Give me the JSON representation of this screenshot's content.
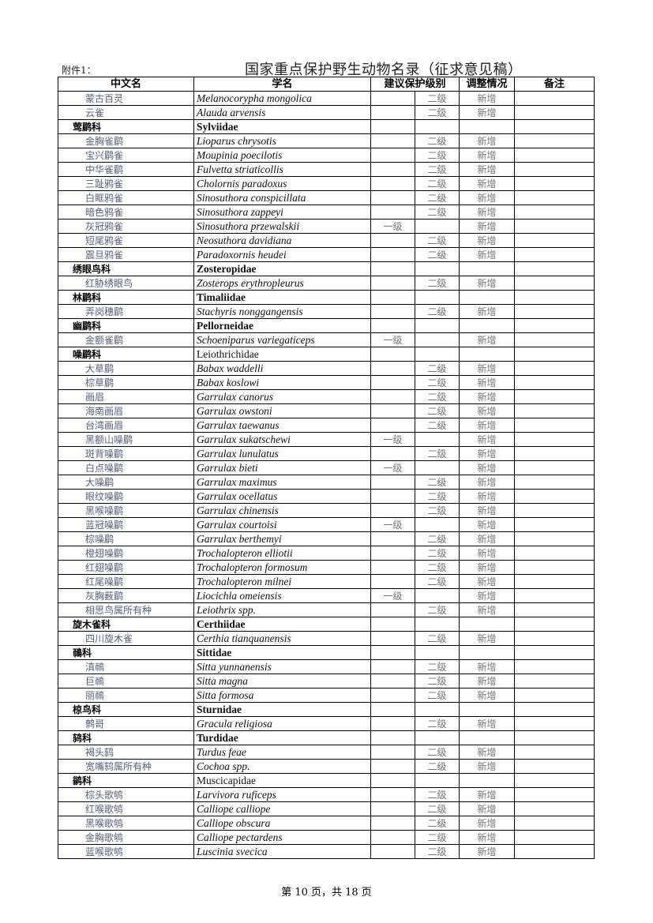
{
  "attachment_label": "附件1：",
  "title": "国家重点保护野生动物名录（征求意见稿）",
  "columns": {
    "chinese_name": "中文名",
    "scientific_name": "学名",
    "level": "建议保护级别",
    "adjustment": "调整情况",
    "remarks": "备注"
  },
  "rows": [
    {
      "cn": "蒙古百灵",
      "sci": "Melanocorypha mongolica",
      "l1": "",
      "l2": "二级",
      "adj": "新增"
    },
    {
      "cn": "云雀",
      "sci": "Alauda arvensis",
      "l1": "",
      "l2": "二级",
      "adj": "新增"
    },
    {
      "family": true,
      "cn": "莺鹛科",
      "sci": "Sylviidae"
    },
    {
      "cn": "金胸雀鹛",
      "sci": "Lioparus chrysotis",
      "l1": "",
      "l2": "二级",
      "adj": "新增"
    },
    {
      "cn": "宝兴鹛雀",
      "sci": "Moupinia poecilotis",
      "l1": "",
      "l2": "二级",
      "adj": "新增"
    },
    {
      "cn": "中华雀鹛",
      "sci": "Fulvetta striaticollis",
      "l1": "",
      "l2": "二级",
      "adj": "新增"
    },
    {
      "cn": "三趾鸦雀",
      "sci": "Cholornis paradoxus",
      "l1": "",
      "l2": "二级",
      "adj": "新增"
    },
    {
      "cn": "白眶鸦雀",
      "sci": "Sinosuthora conspicillata",
      "l1": "",
      "l2": "二级",
      "adj": "新增"
    },
    {
      "cn": "暗色鸦雀",
      "sci": "Sinosuthora zappeyi",
      "l1": "",
      "l2": "二级",
      "adj": "新增"
    },
    {
      "cn": "灰冠鸦雀",
      "sci": "Sinosuthora przewalskii",
      "l1": "一级",
      "l2": "",
      "adj": "新增"
    },
    {
      "cn": "短尾鸦雀",
      "sci": "Neosuthora davidiana",
      "l1": "",
      "l2": "二级",
      "adj": "新增"
    },
    {
      "cn": "震旦鸦雀",
      "sci": "Paradoxornis heudei",
      "l1": "",
      "l2": "二级",
      "adj": "新增"
    },
    {
      "family": true,
      "cn": "绣眼鸟科",
      "sci": "Zosteropidae"
    },
    {
      "cn": "红胁绣眼鸟",
      "sci": "Zosterops erythropleurus",
      "l1": "",
      "l2": "二级",
      "adj": "新增"
    },
    {
      "family": true,
      "cn": "林鹛科",
      "sci": "Timaliidae"
    },
    {
      "cn": "弄岗穗鹛",
      "sci": "Stachyris nonggangensis",
      "l1": "",
      "l2": "二级",
      "adj": "新增"
    },
    {
      "family": true,
      "cn": "幽鹛科",
      "sci": "Pellorneidae"
    },
    {
      "cn": "金额雀鹛",
      "sci": "Schoeniparus variegaticeps",
      "l1": "一级",
      "l2": "",
      "adj": "新增"
    },
    {
      "family": true,
      "plain": true,
      "cn": "噪鹛科",
      "sci": "Leiothrichidae"
    },
    {
      "cn": "大草鹛",
      "sci": "Babax waddelli",
      "l1": "",
      "l2": "二级",
      "adj": "新增"
    },
    {
      "cn": "棕草鹛",
      "sci": "Babax koslowi",
      "l1": "",
      "l2": "二级",
      "adj": "新增"
    },
    {
      "cn": "画眉",
      "sci": "Garrulax canorus",
      "l1": "",
      "l2": "二级",
      "adj": "新增"
    },
    {
      "cn": "海南画眉",
      "sci": "Garrulax owstoni",
      "l1": "",
      "l2": "二级",
      "adj": "新增"
    },
    {
      "cn": "台湾画眉",
      "sci": "Garrulax taewanus",
      "l1": "",
      "l2": "二级",
      "adj": "新增"
    },
    {
      "cn": "黑额山噪鹛",
      "sci": "Garrulax sukatschewi",
      "l1": "一级",
      "l2": "",
      "adj": "新增"
    },
    {
      "cn": "斑背噪鹛",
      "sci": "Garrulax lunulatus",
      "l1": "",
      "l2": "二级",
      "adj": "新增"
    },
    {
      "cn": "白点噪鹛",
      "sci": "Garrulax bieti",
      "l1": "一级",
      "l2": "",
      "adj": "新增"
    },
    {
      "cn": "大噪鹛",
      "sci": "Garrulax maximus",
      "l1": "",
      "l2": "二级",
      "adj": "新增"
    },
    {
      "cn": "眼纹噪鹛",
      "sci": "Garrulax ocellatus",
      "l1": "",
      "l2": "二级",
      "adj": "新增"
    },
    {
      "cn": "黑喉噪鹛",
      "sci": "Garrulax chinensis",
      "l1": "",
      "l2": "二级",
      "adj": "新增"
    },
    {
      "cn": "蓝冠噪鹛",
      "sci": "Garrulax courtoisi",
      "l1": "一级",
      "l2": "",
      "adj": "新增"
    },
    {
      "cn": "棕噪鹛",
      "sci": "Garrulax berthemyi",
      "l1": "",
      "l2": "二级",
      "adj": "新增"
    },
    {
      "cn": "橙翅噪鹛",
      "sci": "Trochalopteron elliotii",
      "l1": "",
      "l2": "二级",
      "adj": "新增"
    },
    {
      "cn": "红翅噪鹛",
      "sci": "Trochalopteron formosum",
      "l1": "",
      "l2": "二级",
      "adj": "新增"
    },
    {
      "cn": "红尾噪鹛",
      "sci": "Trochalopteron milnei",
      "l1": "",
      "l2": "二级",
      "adj": "新增"
    },
    {
      "cn": "灰胸薮鹛",
      "sci": "Liocichla omeiensis",
      "l1": "一级",
      "l2": "",
      "adj": "新增"
    },
    {
      "cn": "相思鸟属所有种",
      "sci": "Leiothrix spp.",
      "l1": "",
      "l2": "二级",
      "adj": "新增"
    },
    {
      "family": true,
      "cn": "旋木雀科",
      "sci": "Certhiidae"
    },
    {
      "cn": "四川旋木雀",
      "sci": "Certhia tianquanensis",
      "l1": "",
      "l2": "二级",
      "adj": "新增"
    },
    {
      "family": true,
      "cn": "鳾科",
      "sci": "Sittidae"
    },
    {
      "cn": "滇鳾",
      "sci": " Sitta yunnanensis",
      "l1": "",
      "l2": "二级",
      "adj": "新增"
    },
    {
      "cn": "巨鳾",
      "sci": "Sitta magna",
      "l1": "",
      "l2": "二级",
      "adj": "新增"
    },
    {
      "cn": "丽鳾",
      "sci": "Sitta formosa",
      "l1": "",
      "l2": "二级",
      "adj": "新增"
    },
    {
      "family": true,
      "cn": "椋鸟科",
      "sci": "Sturnidae"
    },
    {
      "cn": "鹩哥",
      "sci": "Gracula religiosa",
      "l1": "",
      "l2": "二级",
      "adj": "新增"
    },
    {
      "family": true,
      "cn": "鸫科",
      "sci": "Turdidae"
    },
    {
      "cn": "褐头鸫",
      "sci": "Turdus feae",
      "l1": "",
      "l2": "二级",
      "adj": "新增"
    },
    {
      "cn": "宽嘴鸫属所有种",
      "sci": "Cochoa spp.",
      "l1": "",
      "l2": "二级",
      "adj": "新增"
    },
    {
      "family": true,
      "plain": true,
      "cn": "鹟科",
      "sci": "Muscicapidae"
    },
    {
      "cn": "棕头歌鸲",
      "sci": "Larvivora ruficeps",
      "l1": "",
      "l2": "二级",
      "adj": "新增"
    },
    {
      "cn": "红喉歌鸲",
      "sci": "Calliope calliope",
      "l1": "",
      "l2": "二级",
      "adj": "新增"
    },
    {
      "cn": "黑喉歌鸲",
      "sci": "Calliope obscura",
      "l1": "",
      "l2": "二级",
      "adj": "新增"
    },
    {
      "cn": "金胸歌鸲",
      "sci": "Calliope pectardens",
      "l1": "",
      "l2": "二级",
      "adj": "新增"
    },
    {
      "cn": "蓝喉歌鸲",
      "sci": "Luscinia svecica",
      "l1": "",
      "l2": "二级",
      "adj": "新增"
    }
  ],
  "footer": "第 10 页，共 18 页"
}
